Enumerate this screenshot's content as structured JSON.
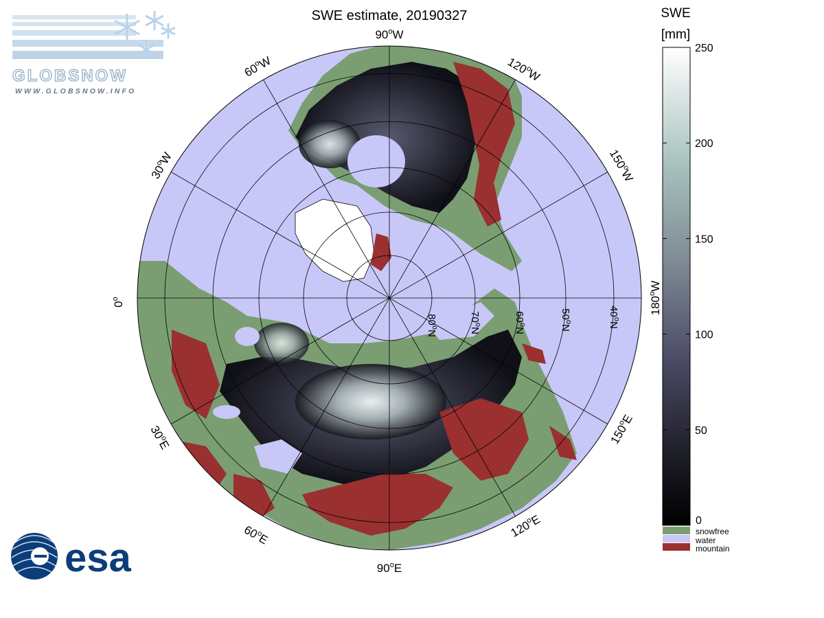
{
  "title": "SWE estimate, 20190327",
  "logo_globsnow": {
    "name": "GLOBSNOW",
    "url": "WWW.GLOBSNOW.INFO"
  },
  "logo_esa": {
    "name": "esa"
  },
  "colors": {
    "water": "#c8c8f8",
    "snowfree": "#7a9e72",
    "mountain": "#9a3030",
    "snow_low": "#0a0a10",
    "snow_high": "#f4f8f6"
  },
  "meridian_labels": [
    {
      "text": "90",
      "unit": "o",
      "dir": "W"
    },
    {
      "text": "120",
      "unit": "o",
      "dir": "W"
    },
    {
      "text": "150",
      "unit": "o",
      "dir": "W"
    },
    {
      "text": "180",
      "unit": "o",
      "dir": "W"
    },
    {
      "text": "150",
      "unit": "o",
      "dir": "E"
    },
    {
      "text": "120",
      "unit": "o",
      "dir": "E"
    },
    {
      "text": "90",
      "unit": "o",
      "dir": "E"
    },
    {
      "text": "60",
      "unit": "o",
      "dir": "E"
    },
    {
      "text": "30",
      "unit": "o",
      "dir": "E"
    },
    {
      "text": "0",
      "unit": "o",
      "dir": ""
    },
    {
      "text": "30",
      "unit": "o",
      "dir": "W"
    },
    {
      "text": "60",
      "unit": "o",
      "dir": "W"
    }
  ],
  "parallel_labels": [
    {
      "text": "80",
      "unit": "o",
      "dir": "N"
    },
    {
      "text": "70",
      "unit": "o",
      "dir": "N"
    },
    {
      "text": "60",
      "unit": "o",
      "dir": "N"
    },
    {
      "text": "50",
      "unit": "o",
      "dir": "N"
    },
    {
      "text": "40",
      "unit": "o",
      "dir": "N"
    }
  ],
  "colorbar": {
    "title_line1": "SWE",
    "title_line2": "[mm]",
    "min": 0,
    "max": 250,
    "ticks": [
      "0",
      "50",
      "100",
      "150",
      "200",
      "250"
    ],
    "categories": [
      {
        "label": "snowfree",
        "color": "#7a9e72"
      },
      {
        "label": "water",
        "color": "#c8c8f8"
      },
      {
        "label": "mountain",
        "color": "#9a3030"
      }
    ]
  }
}
